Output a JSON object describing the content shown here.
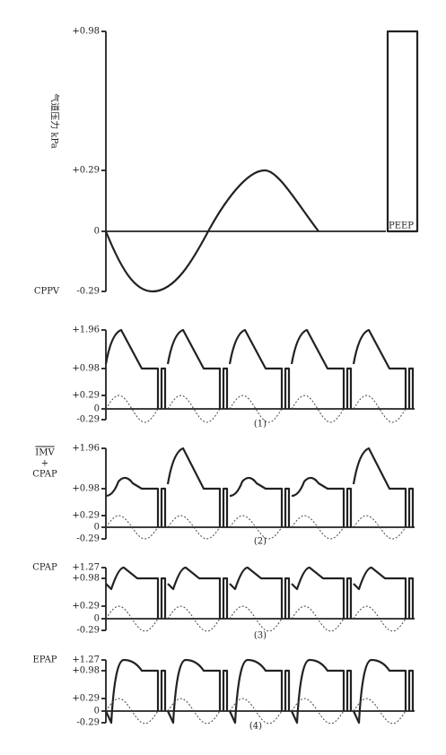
{
  "panels": [
    {
      "label": "CPPV",
      "y_axis_title": "气道压力 kPa",
      "ticks": [
        "+0.98",
        "+0.29",
        "0",
        "-0.29"
      ],
      "annotation": "PEEP"
    },
    {
      "caption": "(1)",
      "ticks": [
        "+1.96",
        "+0.98",
        "+0.29",
        "0",
        "-0.29"
      ]
    },
    {
      "label": [
        "IMV",
        "+",
        "CPAP"
      ],
      "caption": "(2)",
      "ticks": [
        "+1.96",
        "+0.98",
        "+0.29",
        "0",
        "-0.29"
      ]
    },
    {
      "label": "CPAP",
      "caption": "(3)",
      "ticks": [
        "+1.27",
        "+0.98",
        "+0.29",
        "0",
        "-0.29"
      ]
    },
    {
      "label": "EPAP",
      "caption": "(4)",
      "ticks": [
        "+1.27",
        "+0.98",
        "+0.29",
        "0",
        "-0.29"
      ]
    }
  ]
}
